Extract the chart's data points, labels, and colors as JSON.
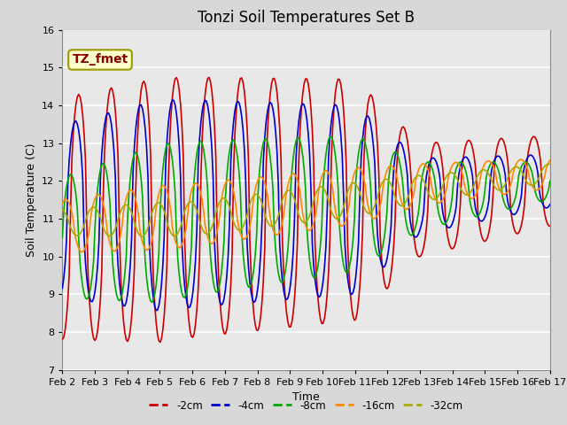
{
  "title": "Tonzi Soil Temperatures Set B",
  "xlabel": "Time",
  "ylabel": "Soil Temperature (C)",
  "ylim": [
    7.0,
    16.0
  ],
  "yticks": [
    7.0,
    8.0,
    9.0,
    10.0,
    11.0,
    12.0,
    13.0,
    14.0,
    15.0,
    16.0
  ],
  "annotation": "TZ_fmet",
  "annotation_color": "#8B0000",
  "annotation_bg": "#FFFFCC",
  "series_labels": [
    "-2cm",
    "-4cm",
    "-8cm",
    "-16cm",
    "-32cm"
  ],
  "series_colors": [
    "#CC0000",
    "#0000CC",
    "#00AA00",
    "#FF8800",
    "#AAAA00"
  ],
  "line_width": 1.2,
  "xtick_labels": [
    "Feb 2",
    "Feb 3",
    "Feb 4",
    "Feb 5",
    "Feb 6",
    "Feb 7",
    "Feb 8",
    "Feb 9",
    "Feb 10",
    "Feb 11",
    "Feb 12",
    "Feb 13",
    "Feb 14",
    "Feb 15",
    "Feb 16",
    "Feb 17"
  ],
  "fig_facecolor": "#D8D8D8",
  "ax_facecolor": "#E8E8E8",
  "title_fontsize": 12,
  "axis_fontsize": 9,
  "tick_fontsize": 8,
  "legend_fontsize": 8.5
}
